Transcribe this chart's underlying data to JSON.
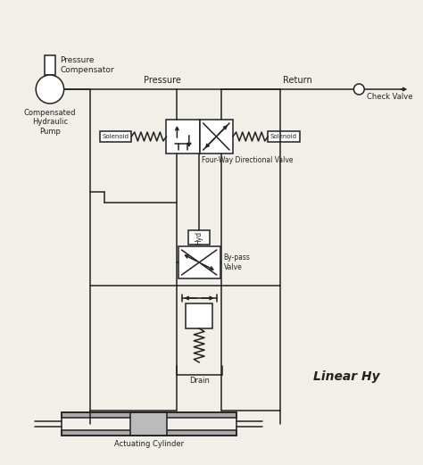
{
  "bg_color": "#f2efe9",
  "line_color": "#222222",
  "title": "Linear Hy",
  "labels": {
    "pressure_compensator": "Pressure\nCompensator",
    "comp_hydraulic_pump": "Compensated\nHydraulic\nPump",
    "pressure": "Pressure",
    "return_label": "Return",
    "check_valve": "Check Valve",
    "solenoid_left": "Solenoid",
    "solenoid_right": "Solenoid",
    "four_way": "Four-Way Directional Valve",
    "hyd": "Hyd",
    "bypass": "By-pass\nValve",
    "drain": "Drain",
    "actuating_cylinder": "Actuating Cylinder"
  },
  "figsize": [
    4.74,
    5.21
  ],
  "dpi": 100
}
